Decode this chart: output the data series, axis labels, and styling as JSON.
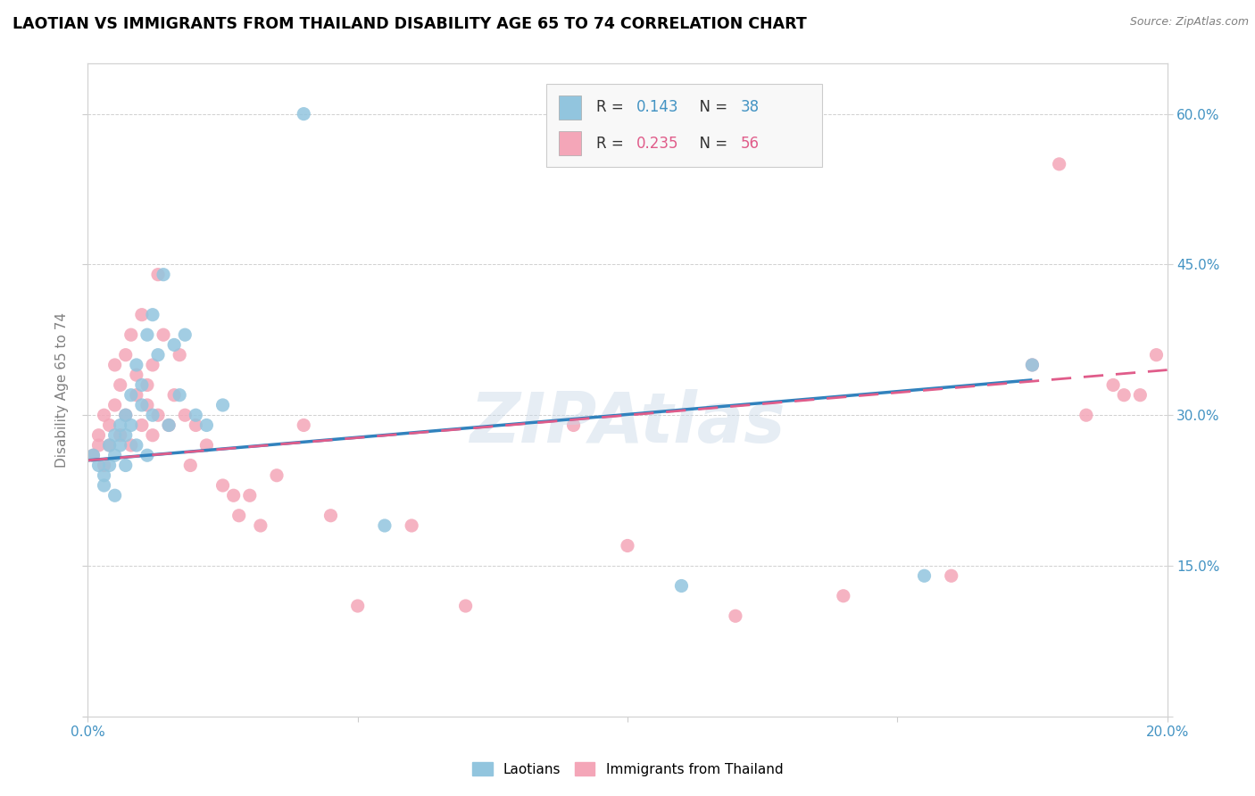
{
  "title": "LAOTIAN VS IMMIGRANTS FROM THAILAND DISABILITY AGE 65 TO 74 CORRELATION CHART",
  "source": "Source: ZipAtlas.com",
  "ylabel": "Disability Age 65 to 74",
  "xlim": [
    0.0,
    0.2
  ],
  "ylim": [
    0.0,
    0.65
  ],
  "color_blue": "#92c5de",
  "color_pink": "#f4a6b8",
  "color_blue_text": "#4393c3",
  "color_pink_text": "#d6604d",
  "color_line_blue": "#3182bd",
  "color_line_pink": "#e05c8a",
  "watermark": "ZIPAtlas",
  "laotians_x": [
    0.001,
    0.002,
    0.003,
    0.003,
    0.004,
    0.004,
    0.005,
    0.005,
    0.005,
    0.006,
    0.006,
    0.007,
    0.007,
    0.007,
    0.008,
    0.008,
    0.009,
    0.009,
    0.01,
    0.01,
    0.011,
    0.011,
    0.012,
    0.012,
    0.013,
    0.014,
    0.015,
    0.016,
    0.017,
    0.018,
    0.02,
    0.022,
    0.025,
    0.04,
    0.055,
    0.11,
    0.155,
    0.175
  ],
  "laotians_y": [
    0.26,
    0.25,
    0.24,
    0.23,
    0.25,
    0.27,
    0.26,
    0.28,
    0.22,
    0.29,
    0.27,
    0.3,
    0.28,
    0.25,
    0.32,
    0.29,
    0.35,
    0.27,
    0.31,
    0.33,
    0.38,
    0.26,
    0.3,
    0.4,
    0.36,
    0.44,
    0.29,
    0.37,
    0.32,
    0.38,
    0.3,
    0.29,
    0.31,
    0.6,
    0.19,
    0.13,
    0.14,
    0.35
  ],
  "thailand_x": [
    0.001,
    0.002,
    0.002,
    0.003,
    0.003,
    0.004,
    0.004,
    0.005,
    0.005,
    0.006,
    0.006,
    0.007,
    0.007,
    0.008,
    0.008,
    0.009,
    0.009,
    0.01,
    0.01,
    0.011,
    0.011,
    0.012,
    0.012,
    0.013,
    0.013,
    0.014,
    0.015,
    0.016,
    0.017,
    0.018,
    0.019,
    0.02,
    0.022,
    0.025,
    0.027,
    0.028,
    0.03,
    0.032,
    0.035,
    0.04,
    0.045,
    0.05,
    0.06,
    0.07,
    0.09,
    0.1,
    0.12,
    0.14,
    0.16,
    0.175,
    0.18,
    0.185,
    0.19,
    0.192,
    0.195,
    0.198
  ],
  "thailand_y": [
    0.26,
    0.28,
    0.27,
    0.3,
    0.25,
    0.29,
    0.27,
    0.31,
    0.35,
    0.33,
    0.28,
    0.36,
    0.3,
    0.38,
    0.27,
    0.32,
    0.34,
    0.29,
    0.4,
    0.31,
    0.33,
    0.35,
    0.28,
    0.44,
    0.3,
    0.38,
    0.29,
    0.32,
    0.36,
    0.3,
    0.25,
    0.29,
    0.27,
    0.23,
    0.22,
    0.2,
    0.22,
    0.19,
    0.24,
    0.29,
    0.2,
    0.11,
    0.19,
    0.11,
    0.29,
    0.17,
    0.1,
    0.12,
    0.14,
    0.35,
    0.55,
    0.3,
    0.33,
    0.32,
    0.32,
    0.36
  ]
}
